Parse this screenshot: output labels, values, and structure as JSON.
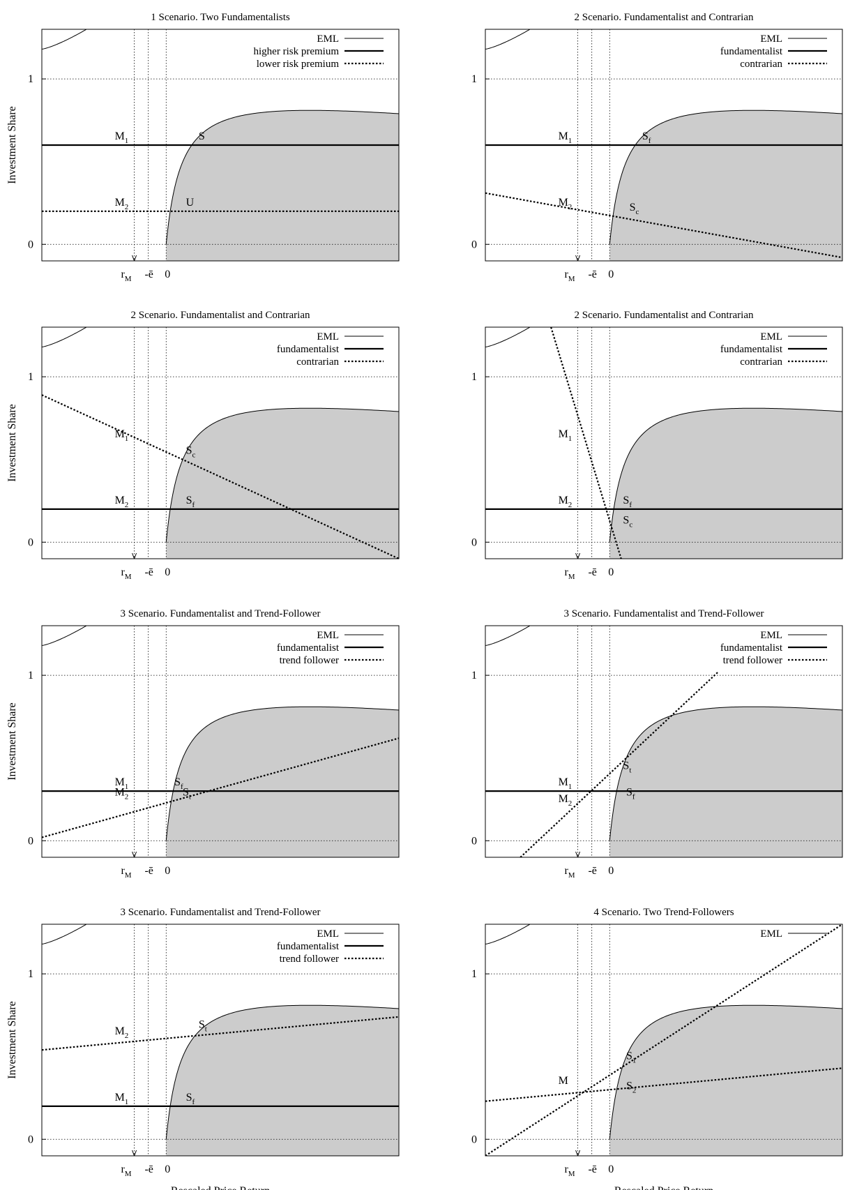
{
  "figure": {
    "ylabel": "Investment Share",
    "xlabel": "Rescaled Price Return"
  },
  "chart_data": [
    {
      "title": "1 Scenario. Two Fundamentalists",
      "type": "line",
      "ylim": [
        -0.1,
        1.3
      ],
      "yticks": [
        "0",
        "1"
      ],
      "xticks": [
        {
          "main": "r",
          "sub": "M"
        },
        {
          "main": "-ē"
        },
        {
          "main": "0"
        }
      ],
      "grid": true,
      "legend_position": "top-right",
      "eml_label": "EML",
      "series": [
        {
          "name": "higher risk premium",
          "style": "thick",
          "x": [
            -1.95,
            3.65
          ],
          "y": [
            0.6,
            0.6
          ]
        },
        {
          "name": "lower risk premium",
          "style": "dashed",
          "x": [
            -1.95,
            3.65
          ],
          "y": [
            0.2,
            0.2
          ]
        }
      ],
      "point_labels": [
        {
          "text": "M",
          "sub": "1",
          "x": -0.5,
          "y": 0.6
        },
        {
          "text": "S",
          "sub": "",
          "x": 0.4,
          "y": 0.6
        },
        {
          "text": "M",
          "sub": "2",
          "x": -0.5,
          "y": 0.2
        },
        {
          "text": "U",
          "sub": "",
          "x": 0.2,
          "y": 0.2
        }
      ],
      "show_ylabel": true,
      "show_xlabel": false
    },
    {
      "title": "2 Scenario. Fundamentalist and Contrarian",
      "type": "line",
      "ylim": [
        -0.1,
        1.3
      ],
      "yticks": [
        "0",
        "1"
      ],
      "xticks": [
        {
          "main": "r",
          "sub": "M"
        },
        {
          "main": "-ē"
        },
        {
          "main": "0"
        }
      ],
      "grid": true,
      "legend_position": "top-right",
      "eml_label": "EML",
      "series": [
        {
          "name": "fundamentalist",
          "style": "thick",
          "x": [
            -1.95,
            3.65
          ],
          "y": [
            0.6,
            0.6
          ]
        },
        {
          "name": "contrarian",
          "style": "dashed",
          "x": [
            -1.95,
            3.65
          ],
          "y": [
            0.31,
            -0.08
          ]
        }
      ],
      "point_labels": [
        {
          "text": "M",
          "sub": "1",
          "x": -0.5,
          "y": 0.6
        },
        {
          "text": "S",
          "sub": "f",
          "x": 0.4,
          "y": 0.6
        },
        {
          "text": "M",
          "sub": "2",
          "x": -0.5,
          "y": 0.2
        },
        {
          "text": "S",
          "sub": "c",
          "x": 0.2,
          "y": 0.17
        }
      ],
      "show_ylabel": false,
      "show_xlabel": false
    },
    {
      "title": "2 Scenario. Fundamentalist and Contrarian",
      "type": "line",
      "ylim": [
        -0.1,
        1.3
      ],
      "yticks": [
        "0",
        "1"
      ],
      "xticks": [
        {
          "main": "r",
          "sub": "M"
        },
        {
          "main": "-ē"
        },
        {
          "main": "0"
        }
      ],
      "grid": true,
      "legend_position": "top-right",
      "eml_label": "EML",
      "series": [
        {
          "name": "fundamentalist",
          "style": "thick",
          "x": [
            -1.95,
            3.65
          ],
          "y": [
            0.2,
            0.2
          ]
        },
        {
          "name": "contrarian",
          "style": "dashed",
          "x": [
            -1.95,
            3.65
          ],
          "y": [
            0.89,
            -0.1
          ]
        }
      ],
      "point_labels": [
        {
          "text": "M",
          "sub": "1",
          "x": -0.5,
          "y": 0.6
        },
        {
          "text": "S",
          "sub": "c",
          "x": 0.2,
          "y": 0.5
        },
        {
          "text": "M",
          "sub": "2",
          "x": -0.5,
          "y": 0.2
        },
        {
          "text": "S",
          "sub": "f",
          "x": 0.2,
          "y": 0.2
        }
      ],
      "show_ylabel": true,
      "show_xlabel": false
    },
    {
      "title": "2 Scenario. Fundamentalist and Contrarian",
      "type": "line",
      "ylim": [
        -0.1,
        1.3
      ],
      "yticks": [
        "0",
        "1"
      ],
      "xticks": [
        {
          "main": "r",
          "sub": "M"
        },
        {
          "main": "-ē"
        },
        {
          "main": "0"
        }
      ],
      "grid": true,
      "legend_position": "top-right",
      "eml_label": "EML",
      "series": [
        {
          "name": "fundamentalist",
          "style": "thick",
          "x": [
            -1.95,
            3.65
          ],
          "y": [
            0.2,
            0.2
          ]
        },
        {
          "name": "contrarian",
          "style": "dashed",
          "x": [
            -0.92,
            0.18
          ],
          "y": [
            1.3,
            -0.1
          ]
        }
      ],
      "point_labels": [
        {
          "text": "M",
          "sub": "1",
          "x": -0.5,
          "y": 0.6
        },
        {
          "text": "M",
          "sub": "2",
          "x": -0.5,
          "y": 0.2
        },
        {
          "text": "S",
          "sub": "f",
          "x": 0.1,
          "y": 0.2
        },
        {
          "text": "S",
          "sub": "c",
          "x": 0.1,
          "y": 0.08
        }
      ],
      "show_ylabel": false,
      "show_xlabel": false
    },
    {
      "title": "3 Scenario. Fundamentalist and Trend-Follower",
      "type": "line",
      "ylim": [
        -0.1,
        1.3
      ],
      "yticks": [
        "0",
        "1"
      ],
      "xticks": [
        {
          "main": "r",
          "sub": "M"
        },
        {
          "main": "-ē"
        },
        {
          "main": "0"
        }
      ],
      "grid": true,
      "legend_position": "top-right",
      "eml_label": "EML",
      "series": [
        {
          "name": "fundamentalist",
          "style": "thick",
          "x": [
            -1.95,
            3.65
          ],
          "y": [
            0.3,
            0.3
          ]
        },
        {
          "name": "trend follower",
          "style": "dashed",
          "x": [
            -1.95,
            3.65
          ],
          "y": [
            0.02,
            0.62
          ]
        }
      ],
      "point_labels": [
        {
          "text": "M",
          "sub": "1",
          "x": -0.5,
          "y": 0.3
        },
        {
          "text": "S",
          "sub": "f",
          "x": 0.02,
          "y": 0.3
        },
        {
          "text": "M",
          "sub": "2",
          "x": -0.5,
          "y": 0.24
        },
        {
          "text": "S",
          "sub": "t",
          "x": 0.15,
          "y": 0.24
        }
      ],
      "show_ylabel": true,
      "show_xlabel": false
    },
    {
      "title": "3 Scenario. Fundamentalist and Trend-Follower",
      "type": "line",
      "ylim": [
        -0.1,
        1.3
      ],
      "yticks": [
        "0",
        "1"
      ],
      "xticks": [
        {
          "main": "r",
          "sub": "M"
        },
        {
          "main": "-ē"
        },
        {
          "main": "0"
        }
      ],
      "grid": true,
      "legend_position": "top-right",
      "eml_label": "EML",
      "series": [
        {
          "name": "fundamentalist",
          "style": "thick",
          "x": [
            -1.95,
            3.65
          ],
          "y": [
            0.3,
            0.3
          ]
        },
        {
          "name": "trend follower",
          "style": "dashed",
          "x": [
            -1.4,
            1.7
          ],
          "y": [
            -0.1,
            1.02
          ]
        }
      ],
      "point_labels": [
        {
          "text": "S",
          "sub": "t",
          "x": 0.1,
          "y": 0.4
        },
        {
          "text": "M",
          "sub": "1",
          "x": -0.5,
          "y": 0.3
        },
        {
          "text": "M",
          "sub": "2",
          "x": -0.5,
          "y": 0.2
        },
        {
          "text": "S",
          "sub": "f",
          "x": 0.15,
          "y": 0.24
        }
      ],
      "show_ylabel": false,
      "show_xlabel": false
    },
    {
      "title": "3 Scenario. Fundamentalist and Trend-Follower",
      "type": "line",
      "ylim": [
        -0.1,
        1.3
      ],
      "yticks": [
        "0",
        "1"
      ],
      "xticks": [
        {
          "main": "r",
          "sub": "M"
        },
        {
          "main": "-ē"
        },
        {
          "main": "0"
        }
      ],
      "grid": true,
      "legend_position": "top-right",
      "eml_label": "EML",
      "series": [
        {
          "name": "fundamentalist",
          "style": "thick",
          "x": [
            -1.95,
            3.65
          ],
          "y": [
            0.2,
            0.2
          ]
        },
        {
          "name": "trend follower",
          "style": "dashed",
          "x": [
            -1.95,
            3.65
          ],
          "y": [
            0.54,
            0.74
          ]
        }
      ],
      "point_labels": [
        {
          "text": "M",
          "sub": "2",
          "x": -0.5,
          "y": 0.6
        },
        {
          "text": "S",
          "sub": "t",
          "x": 0.4,
          "y": 0.64
        },
        {
          "text": "M",
          "sub": "1",
          "x": -0.5,
          "y": 0.2
        },
        {
          "text": "S",
          "sub": "f",
          "x": 0.2,
          "y": 0.2
        }
      ],
      "show_ylabel": true,
      "show_xlabel": true
    },
    {
      "title": "4 Scenario. Two Trend-Followers",
      "type": "line",
      "ylim": [
        -0.1,
        1.3
      ],
      "yticks": [
        "0",
        "1"
      ],
      "xticks": [
        {
          "main": "r",
          "sub": "M"
        },
        {
          "main": "-ē"
        },
        {
          "main": "0"
        }
      ],
      "grid": true,
      "legend_position": "top-right",
      "eml_label": "EML",
      "series": [
        {
          "style": "dashed",
          "x": [
            -1.95,
            3.65
          ],
          "y": [
            -0.1,
            1.3
          ]
        },
        {
          "style": "dashed",
          "x": [
            -1.95,
            3.65
          ],
          "y": [
            0.23,
            0.43
          ]
        }
      ],
      "point_labels": [
        {
          "text": "S",
          "sub": "1",
          "x": 0.15,
          "y": 0.45
        },
        {
          "text": "M",
          "sub": "",
          "x": -0.5,
          "y": 0.3
        },
        {
          "text": "S",
          "sub": "2",
          "x": 0.15,
          "y": 0.27
        }
      ],
      "show_ylabel": false,
      "show_xlabel": true
    }
  ]
}
